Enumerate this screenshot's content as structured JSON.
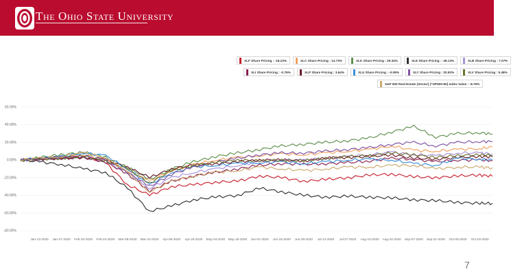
{
  "header": {
    "title": "The Ohio State University",
    "logo_letter": "O",
    "bg_color": "#ba0c2f"
  },
  "page_number": "7",
  "chart_data": {
    "type": "line",
    "title": "",
    "xlabel": "",
    "ylabel": "",
    "y_ticks": [
      "60.00%",
      "40.00%",
      "20.00%",
      "0.00%",
      "-20.00%",
      "-40.00%",
      "-60.00%",
      "-80.00%"
    ],
    "ylim": [
      -80,
      60
    ],
    "x_labels": [
      "Jan-13-2020",
      "Jan-27-2020",
      "Feb-10-2020",
      "Feb-24-2020",
      "Mar-09-2020",
      "Mar-23-2020",
      "Apr-06-2020",
      "Apr-20-2020",
      "May-04-2020",
      "May-18-2020",
      "Jun-01-2020",
      "Jun-15-2020",
      "Jun-29-2020",
      "Jul-13-2020",
      "Jul-27-2020",
      "Aug-10-2020",
      "Aug-24-2020",
      "Sep-07-2020",
      "Sep-21-2020",
      "Oct-05-2020",
      "Oct-19-2020"
    ],
    "x": [
      "Jan-01-2020",
      "Jan-13-2020",
      "Jan-27-2020",
      "Feb-10-2020",
      "Feb-24-2020",
      "Mar-09-2020",
      "Mar-23-2020",
      "Apr-06-2020",
      "Apr-20-2020",
      "May-04-2020",
      "May-18-2020",
      "Jun-01-2020",
      "Jun-15-2020",
      "Jun-29-2020",
      "Jul-13-2020",
      "Jul-27-2020",
      "Aug-10-2020",
      "Aug-24-2020",
      "Sep-07-2020",
      "Sep-21-2020",
      "Oct-05-2020",
      "Oct-19-2020",
      "Oct-27-2020"
    ],
    "legend_placement": "top-right",
    "series": [
      {
        "name": "XLF Share Pricing : -18.23%",
        "color": "#c8202f",
        "values": [
          0,
          2,
          3,
          4,
          -3,
          -28,
          -40,
          -30,
          -28,
          -25,
          -24,
          -18,
          -20,
          -24,
          -22,
          -20,
          -17,
          -16,
          -19,
          -20,
          -18,
          -17,
          -18.23
        ]
      },
      {
        "name": "XLC Share Pricing : 14.73%",
        "color": "#f0a060",
        "values": [
          0,
          2,
          4,
          6,
          1,
          -12,
          -24,
          -12,
          -5,
          0,
          3,
          5,
          7,
          6,
          8,
          10,
          12,
          16,
          11,
          10,
          12,
          13,
          14.73
        ]
      },
      {
        "name": "XLK Share Pricing : 29.34%",
        "color": "#5f8f4f",
        "values": [
          0,
          3,
          6,
          9,
          3,
          -8,
          -22,
          -10,
          -2,
          4,
          8,
          12,
          16,
          18,
          20,
          22,
          25,
          32,
          38,
          26,
          30,
          31,
          29.34
        ]
      },
      {
        "name": "XLE Share Pricing : -49.13%",
        "color": "#303030",
        "values": [
          0,
          -2,
          -5,
          -10,
          -14,
          -32,
          -58,
          -52,
          -45,
          -42,
          -40,
          -32,
          -36,
          -40,
          -42,
          -41,
          -42,
          -43,
          -45,
          -46,
          -48,
          -49,
          -49.13
        ]
      },
      {
        "name": "XLB Share Pricing : 7.07%",
        "color": "#a591d8",
        "values": [
          0,
          1,
          2,
          3,
          -2,
          -14,
          -32,
          -20,
          -14,
          -10,
          -6,
          -2,
          0,
          0,
          2,
          4,
          6,
          9,
          6,
          5,
          8,
          8,
          7.07
        ]
      },
      {
        "name": "XLI Share Pricing : -0.76%",
        "color": "#8a2050",
        "values": [
          0,
          1,
          2,
          3,
          -2,
          -16,
          -35,
          -24,
          -18,
          -14,
          -10,
          -6,
          -4,
          -5,
          -4,
          -3,
          -1,
          2,
          1,
          -2,
          0,
          0,
          -0.76
        ]
      },
      {
        "name": "XLP Share Pricing : 3.64%",
        "color": "#6b1a2a",
        "values": [
          0,
          1,
          2,
          3,
          0,
          -8,
          -20,
          -10,
          -6,
          -4,
          -2,
          0,
          0,
          -1,
          2,
          3,
          4,
          6,
          2,
          1,
          3,
          4,
          3.64
        ]
      },
      {
        "name": "XLU Share Pricing : -0.08%",
        "color": "#3a8fd8",
        "values": [
          0,
          2,
          4,
          8,
          5,
          -10,
          -28,
          -14,
          -8,
          -6,
          -4,
          -3,
          -2,
          -4,
          -2,
          0,
          1,
          0,
          -4,
          -6,
          2,
          1,
          -0.08
        ]
      },
      {
        "name": "XLY Share Pricing : 20.92%",
        "color": "#7e52a0",
        "values": [
          0,
          1,
          3,
          5,
          0,
          -14,
          -30,
          -16,
          -8,
          -2,
          2,
          6,
          8,
          8,
          10,
          12,
          14,
          18,
          20,
          16,
          20,
          21,
          20.92
        ]
      },
      {
        "name": "XLV Share Pricing : 5.48%",
        "color": "#6c6f2c",
        "values": [
          0,
          1,
          2,
          4,
          -1,
          -10,
          -26,
          -12,
          -6,
          -3,
          0,
          -1,
          0,
          -1,
          2,
          4,
          5,
          8,
          6,
          3,
          5,
          6,
          5.48
        ]
      },
      {
        "name": "S&P 500 Real Estate (Sector) (^SP500-60) Index Value : -8.76%",
        "color": "#c9a86b",
        "values": [
          0,
          2,
          4,
          8,
          3,
          -14,
          -36,
          -24,
          -18,
          -14,
          -12,
          -8,
          -10,
          -12,
          -10,
          -8,
          -8,
          -6,
          -6,
          -10,
          -8,
          -8,
          -8.76
        ]
      }
    ]
  }
}
